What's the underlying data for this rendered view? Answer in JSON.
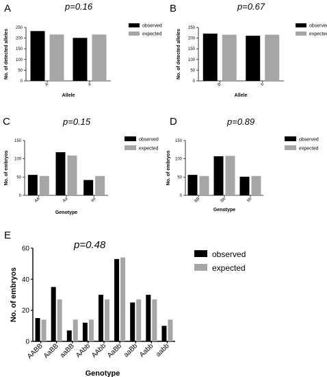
{
  "colors": {
    "observed": "#000000",
    "expected": "#a6a6a6",
    "axis": "#000000"
  },
  "chart_data": [
    {
      "panel": "A",
      "type": "bar",
      "title": "p=0.16",
      "xlabel": "Allele",
      "ylabel": "No. of detected alleles",
      "categories": [
        "A",
        "a"
      ],
      "series": [
        {
          "name": "observed",
          "values": [
            233,
            201
          ]
        },
        {
          "name": "expected",
          "values": [
            217,
            217
          ]
        }
      ],
      "ylim": [
        0,
        250
      ],
      "yticks": [
        0,
        50,
        100,
        150,
        200,
        250
      ],
      "legend_position": "right",
      "grid": false
    },
    {
      "panel": "B",
      "type": "bar",
      "title": "p=0.67",
      "xlabel": "Allele",
      "ylabel": "No. of detected alleles",
      "categories": [
        "B",
        "b"
      ],
      "series": [
        {
          "name": "observed",
          "values": [
            221,
            211
          ]
        },
        {
          "name": "expected",
          "values": [
            216,
            216
          ]
        }
      ],
      "ylim": [
        0,
        250
      ],
      "yticks": [
        0,
        50,
        100,
        150,
        200,
        250
      ],
      "legend_position": "right",
      "grid": false
    },
    {
      "panel": "C",
      "type": "bar",
      "title": "p=0.15",
      "xlabel": "Genotype",
      "ylabel": "No. of embryos",
      "categories": [
        "AA",
        "Aa",
        "aa"
      ],
      "series": [
        {
          "name": "observed",
          "values": [
            56,
            118,
            42
          ]
        },
        {
          "name": "expected",
          "values": [
            53,
            109,
            53
          ]
        }
      ],
      "ylim": [
        0,
        150
      ],
      "yticks": [
        0,
        50,
        100,
        150
      ],
      "legend_position": "right",
      "grid": false
    },
    {
      "panel": "D",
      "type": "bar",
      "title": "p=0.89",
      "xlabel": "Genotype",
      "ylabel": "No. of embryos",
      "categories": [
        "BB",
        "Bb",
        "bb"
      ],
      "series": [
        {
          "name": "observed",
          "values": [
            56,
            107,
            51
          ]
        },
        {
          "name": "expected",
          "values": [
            53,
            108,
            53
          ]
        }
      ],
      "ylim": [
        0,
        150
      ],
      "yticks": [
        0,
        50,
        100,
        150
      ],
      "legend_position": "right",
      "grid": false
    },
    {
      "panel": "E",
      "type": "bar",
      "title": "p=0.48",
      "xlabel": "Genotype",
      "ylabel": "No. of embryos",
      "categories": [
        "AABB",
        "AaBB",
        "aaBB",
        "AAbb",
        "AAbb",
        "AaBb",
        "aaBb",
        "Aabb",
        "aabb"
      ],
      "series": [
        {
          "name": "observed",
          "values": [
            15,
            35,
            7,
            12,
            30,
            53,
            25,
            30,
            10
          ]
        },
        {
          "name": "expected",
          "values": [
            14,
            27,
            14,
            14,
            27,
            54,
            27,
            27,
            14
          ]
        }
      ],
      "ylim": [
        0,
        60
      ],
      "yticks": [
        0,
        20,
        40,
        60
      ],
      "legend_position": "right",
      "grid": false
    }
  ]
}
